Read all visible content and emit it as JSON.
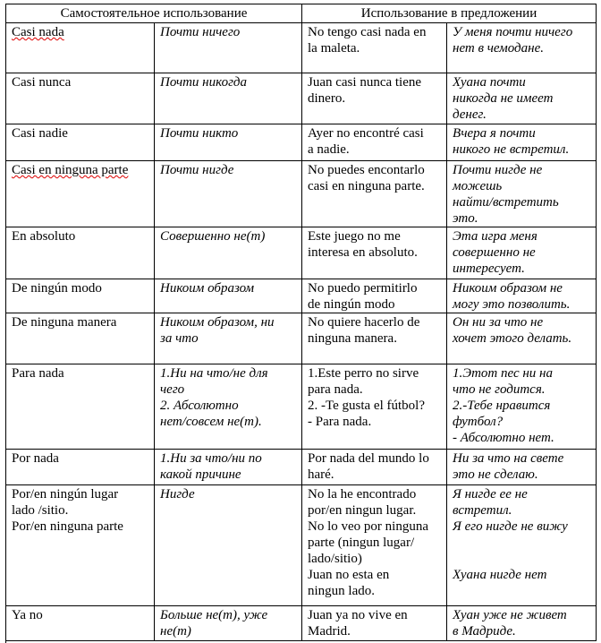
{
  "header": {
    "standalone_use": "Самостоятельное использование",
    "sentence_use": "Использование в предложении"
  },
  "rows": [
    {
      "es": [
        "Casi nada"
      ],
      "ru": [
        "Почти ничего"
      ],
      "ex_es": [
        "No tengo casi nada en",
        "la maleta."
      ],
      "ex_ru": [
        "У меня почти ничего",
        "нет в чемодане."
      ]
    },
    {
      "es": [
        "Casi nunca"
      ],
      "ru": [
        "Почти никогда"
      ],
      "ex_es": [
        "Juan casi nunca tiene",
        "dinero."
      ],
      "ex_ru": [
        "Хуана почти",
        "никогда не имеет",
        "денег."
      ]
    },
    {
      "es": [
        "Casi nadie"
      ],
      "ru": [
        "Почти никто"
      ],
      "ex_es": [
        "Ayer no encontré casi",
        "a nadie."
      ],
      "ex_ru": [
        "Вчера я почти",
        "никого не встретил."
      ]
    },
    {
      "es": [
        "Casi en ninguna parte"
      ],
      "ru": [
        "Почти нигде"
      ],
      "ex_es": [
        "No puedes encontarlo",
        "casi en ninguna parte."
      ],
      "ex_ru": [
        "Почти нигде не",
        "можешь",
        "найти/встретить",
        "это."
      ]
    },
    {
      "es": [
        "En absoluto"
      ],
      "ru": [
        "Совершенно не(т)"
      ],
      "ex_es": [
        "Este juego no me",
        "interesa en absoluto."
      ],
      "ex_ru": [
        "Эта игра меня",
        "совершенно не",
        "интересует."
      ]
    },
    {
      "es": [
        "De ningún modo"
      ],
      "ru": [
        "Никоим образом"
      ],
      "ex_es": [
        "No puedo permitirlo",
        "de ningún modo"
      ],
      "ex_ru": [
        "Никоим образом не",
        "могу это позволить."
      ]
    },
    {
      "es": [
        "De ninguna manera"
      ],
      "ru": [
        "Никоим образом, ни",
        "за что"
      ],
      "ex_es": [
        "No quiere hacerlo de",
        "ninguna manera."
      ],
      "ex_ru": [
        "Он ни за что не",
        "хочет этого делать."
      ]
    },
    {
      "es": [
        "Para nada"
      ],
      "ru": [
        "1.Ни на что/не для",
        "чего",
        "2.  Абсолютно",
        "нет/совсем не(т)."
      ],
      "ex_es": [
        "1.Este perro no sirve",
        "para nada.",
        "2. -Te gusta el fútbol?",
        "- Para nada."
      ],
      "ex_ru": [
        "1.Этот пес ни на",
        "что не годится.",
        "2.-Тебе нравится",
        "футбол?",
        "- Абсолютно нет."
      ]
    },
    {
      "es": [
        "Por nada"
      ],
      "ru": [
        "1.Ни за что/ни по",
        "какой причине"
      ],
      "ex_es": [
        "Por nada del mundo lo",
        "haré."
      ],
      "ex_ru": [
        "Ни за что на свете",
        "это не сделаю."
      ]
    },
    {
      "es": [
        "Por/en ningún lugar",
        "lado /sitio.",
        "Por/en ninguna parte"
      ],
      "ru": [
        "Нигде"
      ],
      "ex_es": [
        "No la he encontrado",
        "por/en ningun lugar.",
        "No lo veo por ninguna",
        "parte (ningun lugar/",
        "lado/sitio)",
        "Juan no esta en",
        "ningun lado."
      ],
      "ex_ru": [
        "Я нигде ее не",
        "встретил.",
        "Я его нигде не вижу",
        "",
        "",
        "Хуана нигде нет"
      ]
    },
    {
      "es": [
        "Ya no"
      ],
      "ru": [
        "Больше не(т), уже",
        "не(т)"
      ],
      "ex_es": [
        "Juan ya no vive en",
        "Madrid."
      ],
      "ex_ru": [
        "Хуан уже не живет",
        "в Мадриде."
      ]
    }
  ]
}
